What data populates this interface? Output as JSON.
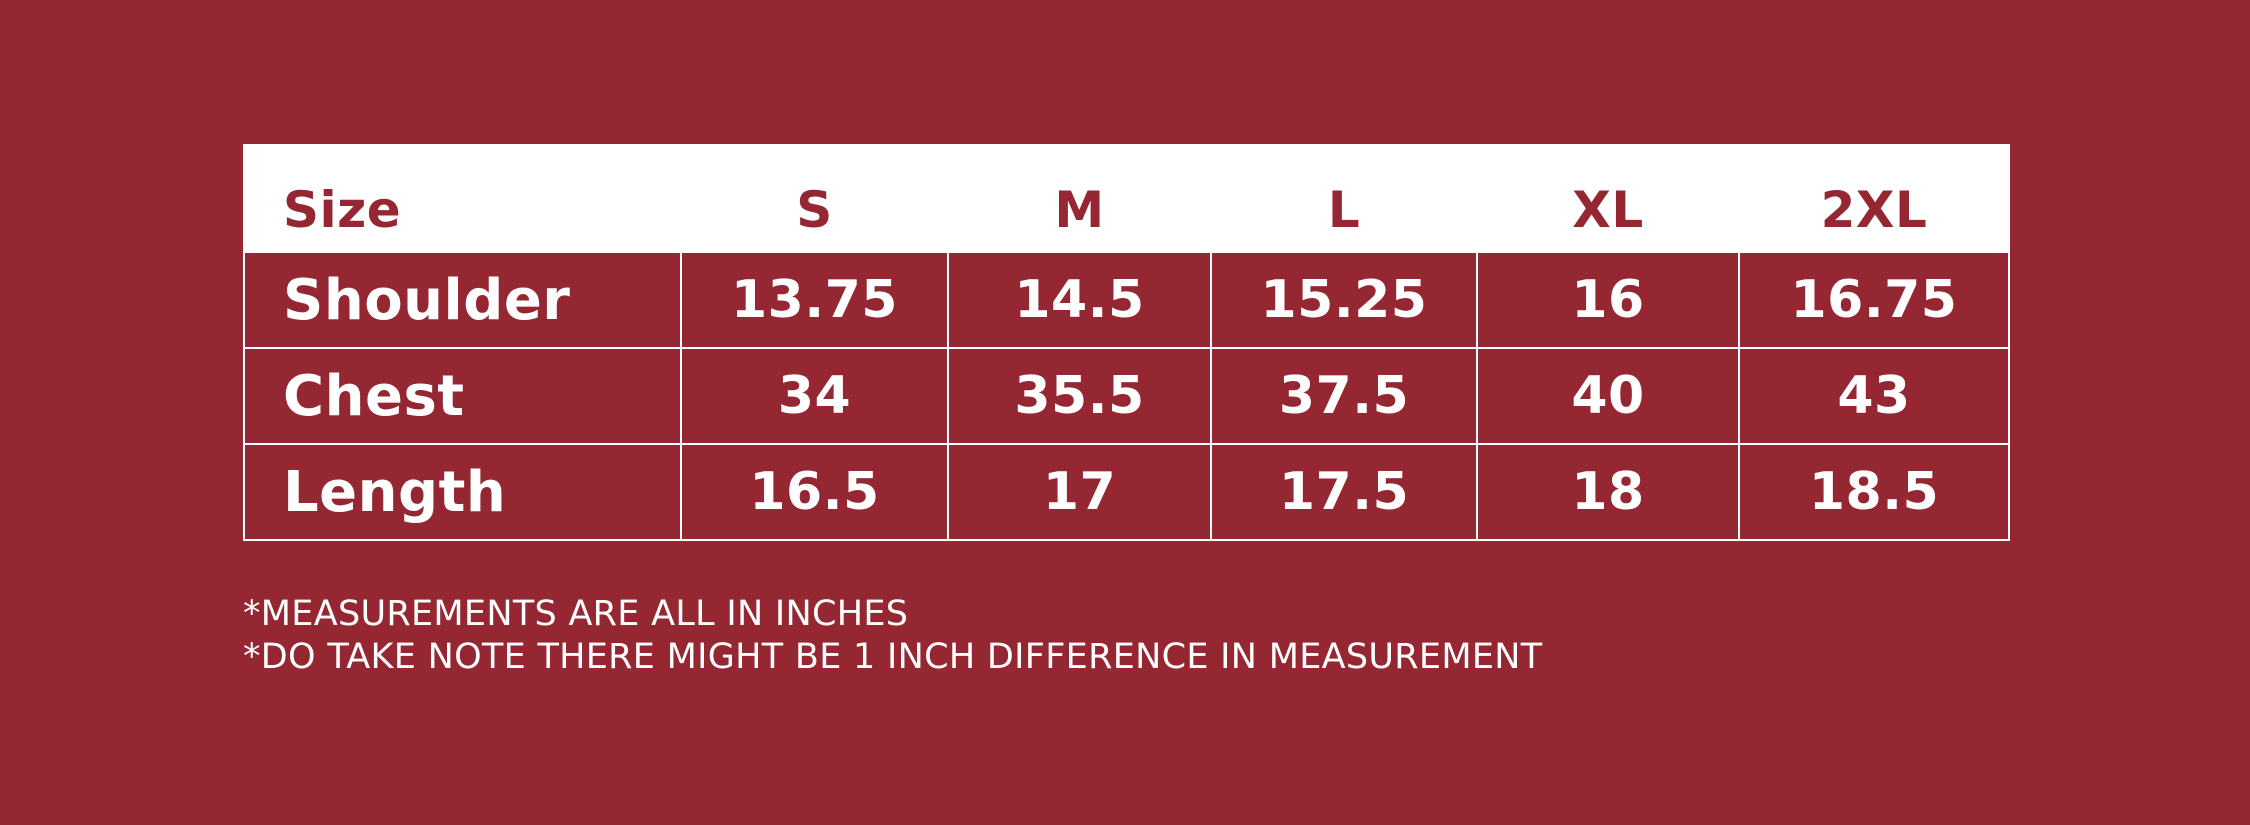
{
  "colors": {
    "background": "#952733",
    "header_background": "#ffffff",
    "header_text": "#952733",
    "body_text": "#ffffff",
    "grid_lines": "#ffffff"
  },
  "table": {
    "headers": [
      "Size",
      "S",
      "M",
      "L",
      "XL",
      "2XL"
    ],
    "rows": [
      {
        "label": "Shoulder",
        "values": [
          "13.75",
          "14.5",
          "15.25",
          "16",
          "16.75"
        ]
      },
      {
        "label": "Chest",
        "values": [
          "34",
          "35.5",
          "37.5",
          "40",
          "43"
        ]
      },
      {
        "label": "Length",
        "values": [
          "16.5",
          "17",
          "17.5",
          "18",
          "18.5"
        ]
      }
    ]
  },
  "notes": [
    "*MEASUREMENTS ARE ALL IN INCHES",
    "*DO TAKE NOTE THERE MIGHT BE 1 INCH DIFFERENCE IN MEASUREMENT"
  ]
}
